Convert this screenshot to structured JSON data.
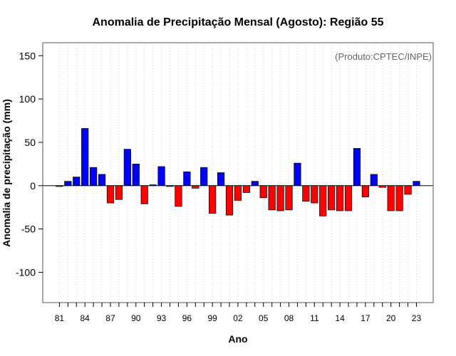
{
  "chart_data": {
    "type": "bar",
    "title": "Anomalia de Precipitação Mensal (Agosto): Região 55",
    "xlabel": "Ano",
    "ylabel": "Anomalia de precipitação (mm)",
    "credit": "(Produto:CPTEC/INPE)",
    "ylim": [
      -135,
      165
    ],
    "yticks": [
      -100,
      -50,
      0,
      50,
      100,
      150
    ],
    "xtick_labels": [
      "81",
      "84",
      "87",
      "90",
      "93",
      "96",
      "99",
      "02",
      "05",
      "08",
      "11",
      "14",
      "17",
      "20",
      "23"
    ],
    "years": [
      "1981",
      "1982",
      "1983",
      "1984",
      "1985",
      "1986",
      "1987",
      "1988",
      "1989",
      "1990",
      "1991",
      "1992",
      "1993",
      "1994",
      "1995",
      "1996",
      "1997",
      "1998",
      "1999",
      "2000",
      "2001",
      "2002",
      "2003",
      "2004",
      "2005",
      "2006",
      "2007",
      "2008",
      "2009",
      "2010",
      "2011",
      "2012",
      "2013",
      "2014",
      "2015",
      "2016",
      "2017",
      "2018",
      "2019",
      "2020",
      "2021",
      "2022",
      "2023"
    ],
    "values": [
      -1,
      5,
      10,
      66,
      21,
      13,
      -20,
      -16,
      42,
      25,
      -21,
      1,
      22,
      -1,
      -24,
      16,
      -3,
      21,
      -32,
      15,
      -34,
      -17,
      -8,
      5,
      -14,
      -28,
      -29,
      -28,
      26,
      -18,
      -20,
      -35,
      -28,
      -29,
      -29,
      43,
      -13,
      13,
      -2,
      -29,
      -29,
      -10,
      5
    ],
    "colors": {
      "positive": "#0000ff",
      "negative": "#ff0000",
      "grid": "#d3d3d3",
      "frame": "#555555",
      "zero_line": "#000000"
    },
    "grid": true
  }
}
